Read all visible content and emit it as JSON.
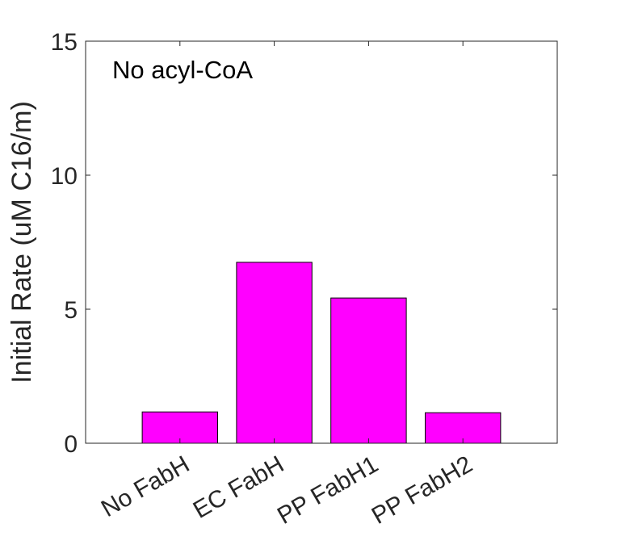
{
  "chart_data": {
    "type": "bar",
    "title": "",
    "annotation": "No acyl-CoA",
    "xlabel": "",
    "ylabel": "Initial Rate (uM C16/m)",
    "categories": [
      "No FabH",
      "EC FabH",
      "PP FabH1",
      "PP FabH2"
    ],
    "values": [
      1.17,
      6.75,
      5.42,
      1.14
    ],
    "ylim": [
      0,
      15
    ],
    "xlim": [
      0,
      5
    ],
    "yticks": [
      0,
      5,
      10,
      15
    ],
    "grid": false,
    "legend": "none",
    "bar_color": "#ff00ff"
  }
}
